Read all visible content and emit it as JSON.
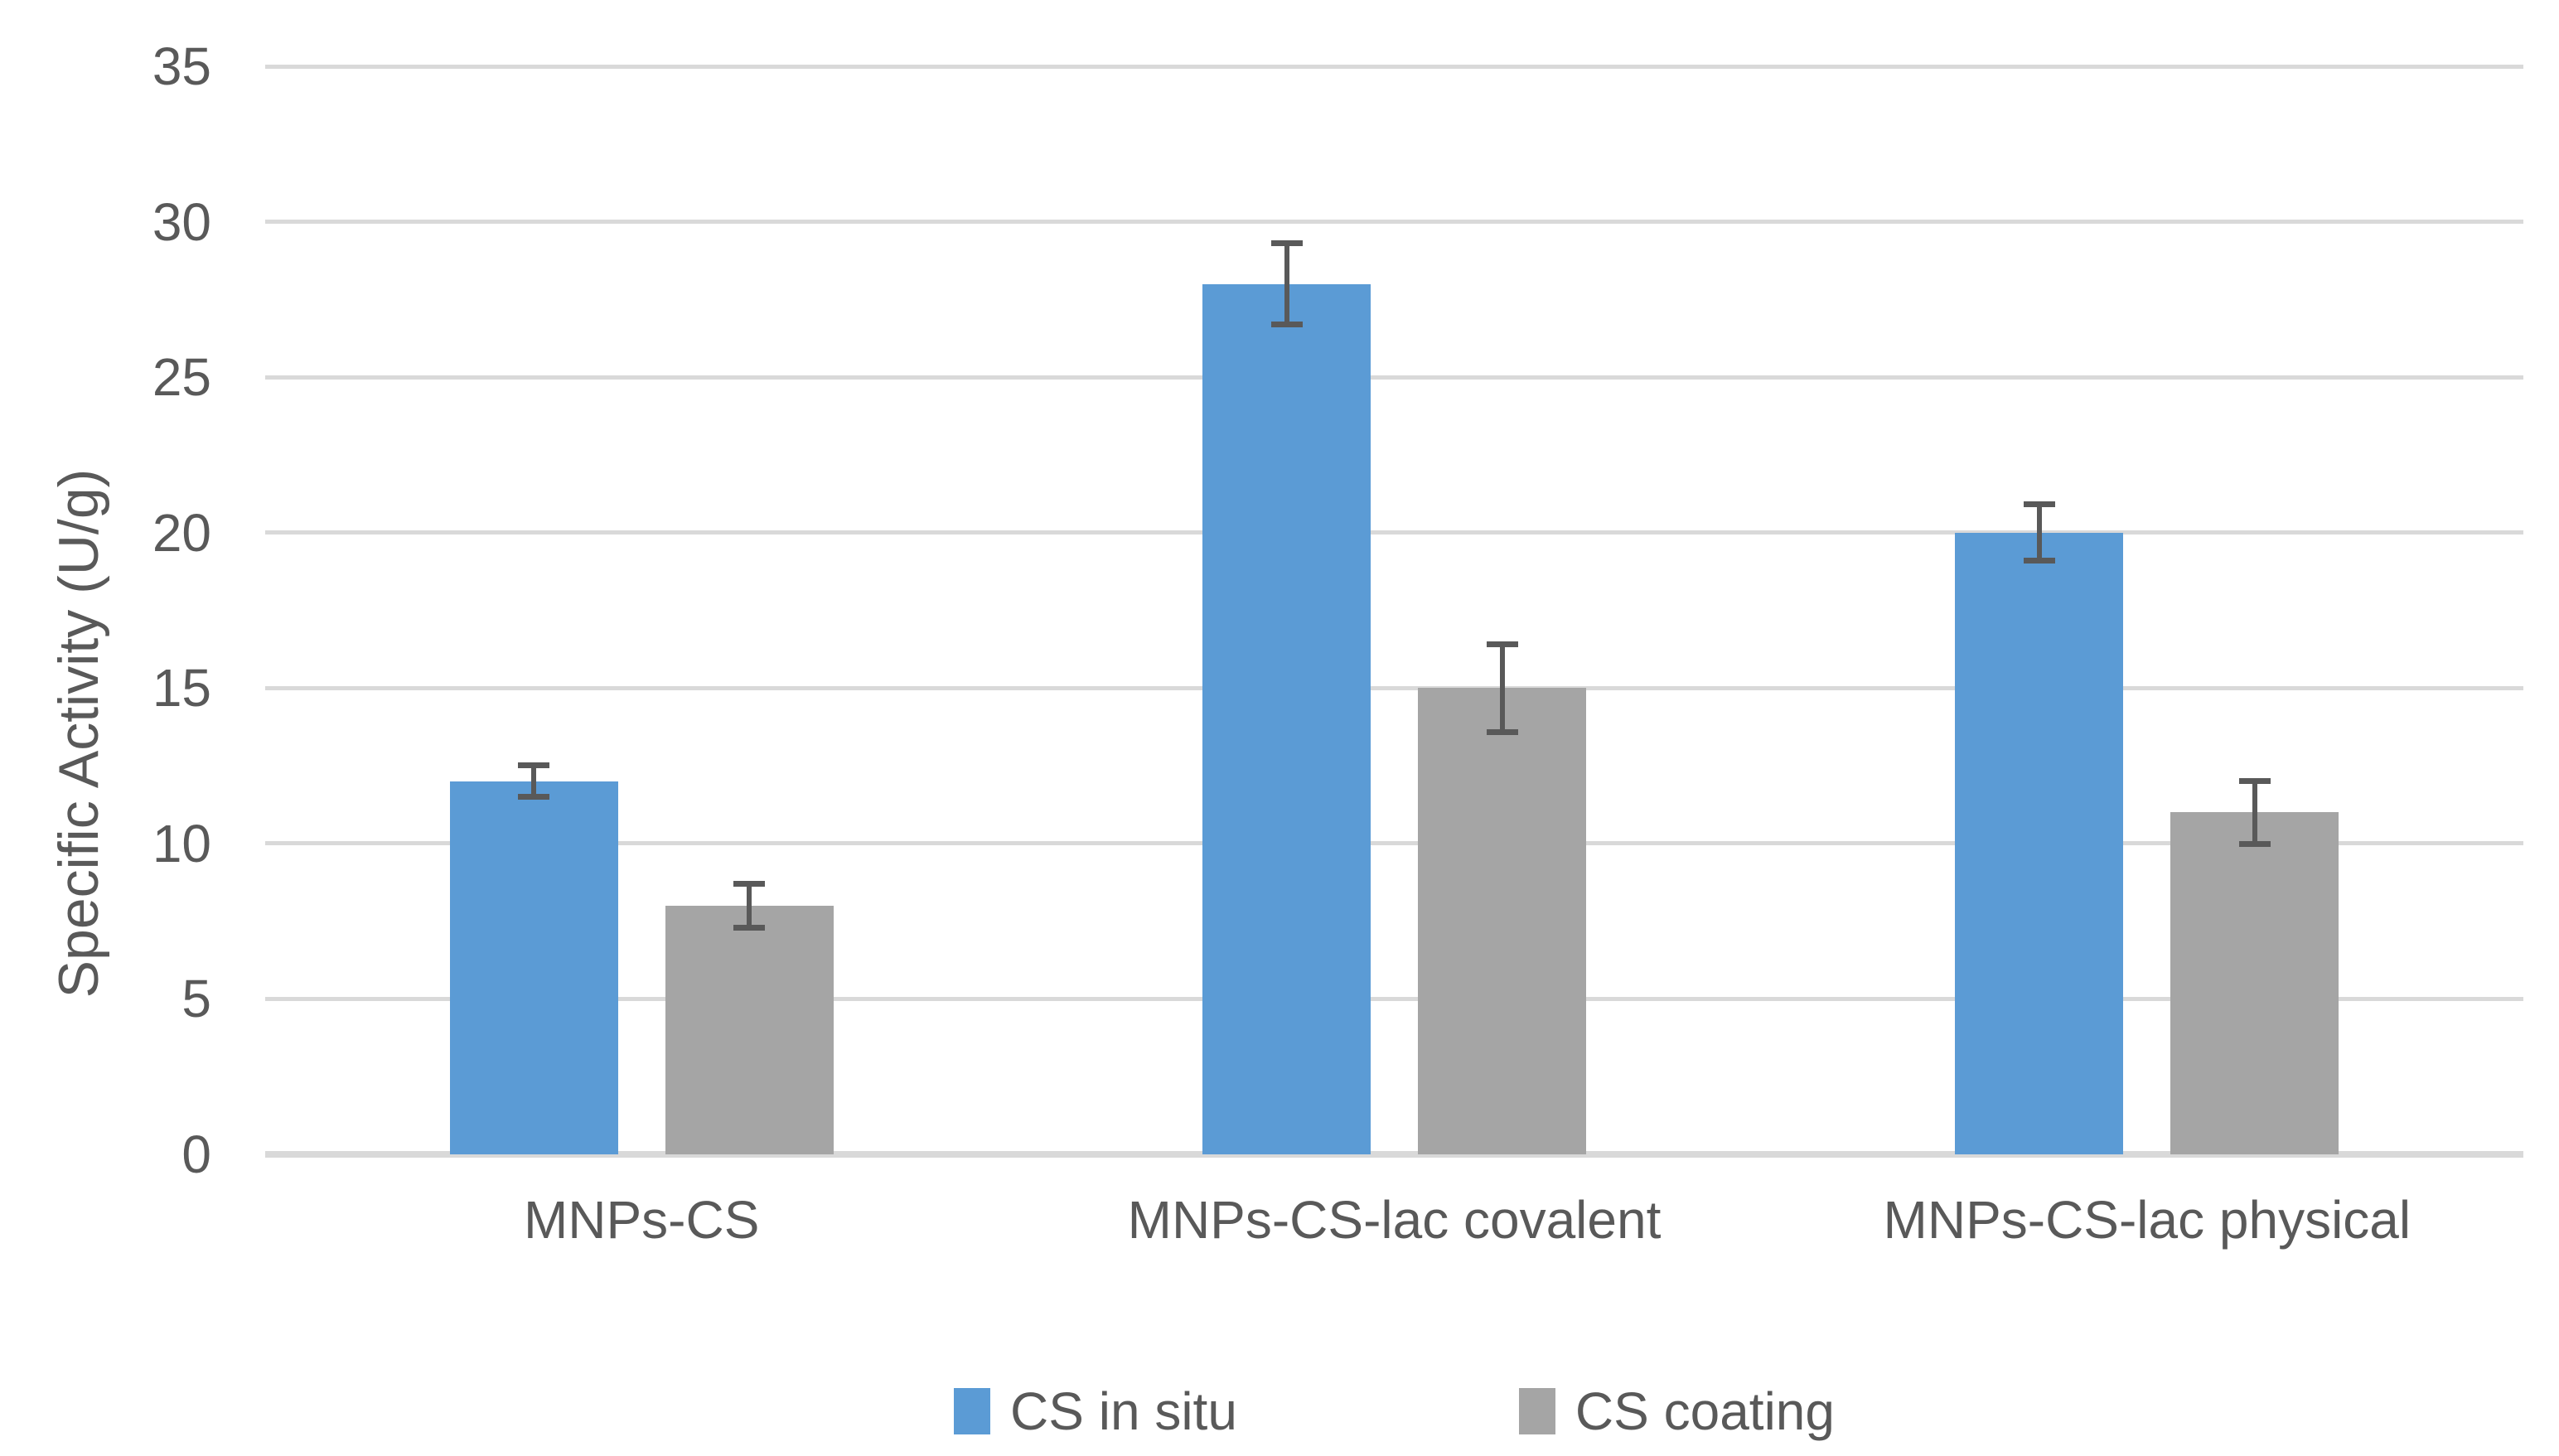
{
  "page": {
    "background": "#ffffff"
  },
  "chart_data": {
    "type": "bar",
    "title": "",
    "xlabel": "",
    "ylabel": "Specific Activity (U/g)",
    "categories": [
      "MNPs-CS",
      "MNPs-CS-lac covalent",
      "MNPs-CS-lac physical"
    ],
    "series": [
      {
        "name": "CS in situ",
        "color": "#5B9BD5",
        "values": [
          12,
          28,
          20
        ],
        "errors": [
          0.6,
          1.4,
          1.0
        ]
      },
      {
        "name": "CS coating",
        "color": "#A5A5A5",
        "values": [
          8,
          15,
          11
        ],
        "errors": [
          0.8,
          1.5,
          1.1
        ]
      }
    ],
    "ylim": [
      0,
      35
    ],
    "y_ticks": [
      "0",
      "5",
      "10",
      "15",
      "20",
      "25",
      "30",
      "35"
    ],
    "grid": true,
    "gridline_color": "#D9D9D9",
    "axis_line_color": "#D9D9D9",
    "error_bar_color": "#595959",
    "text_color": "#595959",
    "legend_position": "bottom"
  }
}
